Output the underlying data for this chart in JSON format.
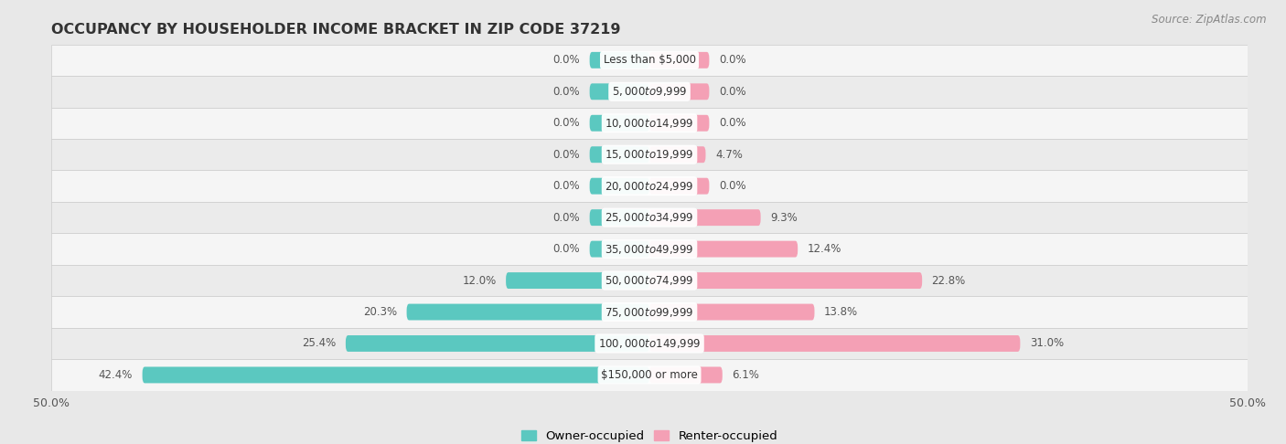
{
  "title": "OCCUPANCY BY HOUSEHOLDER INCOME BRACKET IN ZIP CODE 37219",
  "source": "Source: ZipAtlas.com",
  "categories": [
    "Less than $5,000",
    "$5,000 to $9,999",
    "$10,000 to $14,999",
    "$15,000 to $19,999",
    "$20,000 to $24,999",
    "$25,000 to $34,999",
    "$35,000 to $49,999",
    "$50,000 to $74,999",
    "$75,000 to $99,999",
    "$100,000 to $149,999",
    "$150,000 or more"
  ],
  "owner_values": [
    0.0,
    0.0,
    0.0,
    0.0,
    0.0,
    0.0,
    0.0,
    12.0,
    20.3,
    25.4,
    42.4
  ],
  "renter_values": [
    0.0,
    0.0,
    0.0,
    4.7,
    0.0,
    9.3,
    12.4,
    22.8,
    13.8,
    31.0,
    6.1
  ],
  "owner_color": "#5BC8C0",
  "renter_color": "#F4A0B5",
  "bg_color": "#e8e8e8",
  "row_bg_even": "#f5f5f5",
  "row_bg_odd": "#ebebeb",
  "axis_limit": 50.0,
  "label_fontsize": 8.5,
  "category_fontsize": 8.5,
  "title_fontsize": 11.5,
  "source_fontsize": 8.5,
  "bar_height": 0.52
}
